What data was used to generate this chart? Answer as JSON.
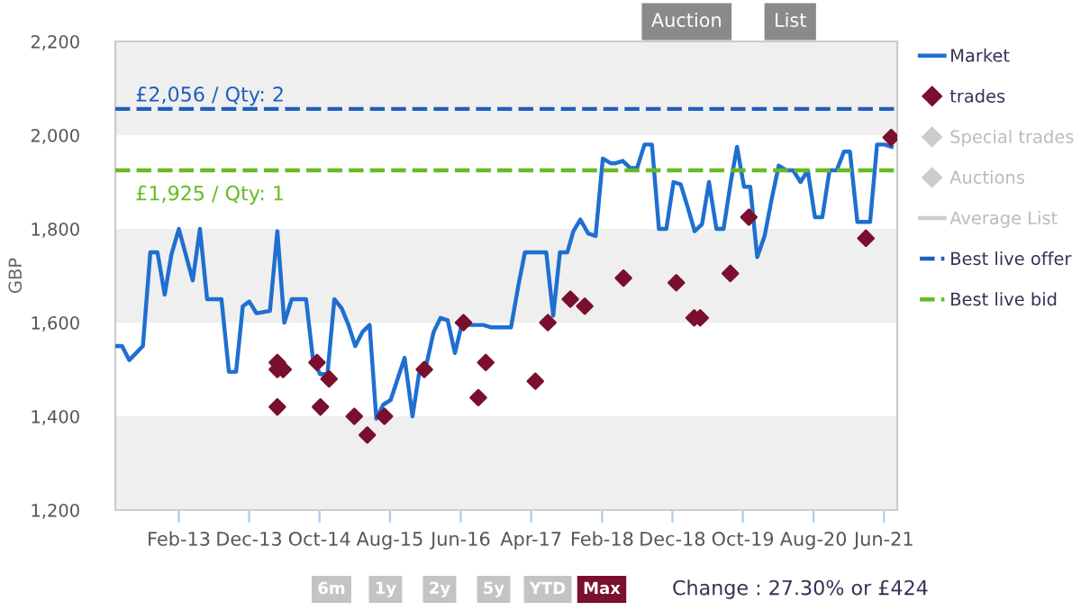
{
  "chart_data": {
    "type": "line",
    "ylabel": "GBP",
    "xlim": [
      "2012-05-03",
      "2021-07-28"
    ],
    "xticks": [
      {
        "value": "2013-02-01",
        "label": "Feb-13"
      },
      {
        "value": "2013-12-01",
        "label": "Dec-13"
      },
      {
        "value": "2014-10-01",
        "label": "Oct-14"
      },
      {
        "value": "2015-08-01",
        "label": "Aug-15"
      },
      {
        "value": "2016-06-01",
        "label": "Jun-16"
      },
      {
        "value": "2017-04-01",
        "label": "Apr-17"
      },
      {
        "value": "2018-02-01",
        "label": "Feb-18"
      },
      {
        "value": "2018-12-01",
        "label": "Dec-18"
      },
      {
        "value": "2019-10-01",
        "label": "Oct-19"
      },
      {
        "value": "2020-08-01",
        "label": "Aug-20"
      },
      {
        "value": "2021-06-01",
        "label": "Jun-21"
      }
    ],
    "ylim": [
      1200,
      2200
    ],
    "yticks": [
      {
        "value": 1200,
        "label": "1,200"
      },
      {
        "value": 1400,
        "label": "1,400"
      },
      {
        "value": 1600,
        "label": "1,600"
      },
      {
        "value": 1800,
        "label": "1,800"
      },
      {
        "value": 2000,
        "label": "2,000"
      },
      {
        "value": 2200,
        "label": "2,200"
      }
    ],
    "grid": false,
    "legend": "right",
    "bands": [
      {
        "axis": "y",
        "from": 1200,
        "to": 1400,
        "color": "#efefef"
      },
      {
        "axis": "y",
        "from": 1600,
        "to": 1800,
        "color": "#efefef"
      },
      {
        "axis": "y",
        "from": 2000,
        "to": 2200,
        "color": "#efefef"
      }
    ],
    "series": [
      {
        "name": "Market",
        "color": "#1f6fd1",
        "marker": "none",
        "line_style": "solid",
        "x": [
          "2012-05-03",
          "2012-06-01",
          "2012-07-02",
          "2012-08-30",
          "2012-10-01",
          "2012-11-01",
          "2012-12-02",
          "2012-12-31",
          "2013-02-01",
          "2013-04-02",
          "2013-05-03",
          "2013-06-03",
          "2013-08-04",
          "2013-09-05",
          "2013-10-06",
          "2013-11-04",
          "2013-12-02",
          "2014-01-02",
          "2014-03-01",
          "2014-04-02",
          "2014-05-02",
          "2014-06-03",
          "2014-08-04",
          "2014-09-02",
          "2014-10-03",
          "2014-11-04",
          "2014-12-04",
          "2015-01-05",
          "2015-02-03",
          "2015-03-04",
          "2015-04-04",
          "2015-05-05",
          "2015-06-03",
          "2015-07-03",
          "2015-08-04",
          "2015-10-03",
          "2015-11-06",
          "2015-12-04",
          "2016-01-05",
          "2016-02-05",
          "2016-03-06",
          "2016-04-06",
          "2016-05-07",
          "2016-06-05",
          "2016-07-06",
          "2016-09-07",
          "2016-10-08",
          "2017-01-04",
          "2017-02-05",
          "2017-03-05",
          "2017-06-05",
          "2017-07-05",
          "2017-08-03",
          "2017-09-04",
          "2017-09-30",
          "2017-10-30",
          "2017-12-03",
          "2018-01-04",
          "2018-02-04",
          "2018-03-10",
          "2018-03-31",
          "2018-05-01",
          "2018-06-02",
          "2018-07-02",
          "2018-08-03",
          "2018-09-04",
          "2018-10-04",
          "2018-11-05",
          "2018-12-06",
          "2019-01-06",
          "2019-02-06",
          "2019-03-07",
          "2019-04-08",
          "2019-05-08",
          "2019-06-09",
          "2019-07-10",
          "2019-08-10",
          "2019-09-06",
          "2019-10-06",
          "2019-11-02",
          "2019-12-02",
          "2020-01-03",
          "2020-02-03",
          "2020-03-04",
          "2020-04-05",
          "2020-05-05",
          "2020-06-06",
          "2020-07-07",
          "2020-08-07",
          "2020-09-08",
          "2020-10-09",
          "2020-11-09",
          "2020-12-10",
          "2021-01-05",
          "2021-02-06",
          "2021-04-02",
          "2021-05-02",
          "2021-06-03",
          "2021-07-04"
        ],
        "values": [
          1550,
          1550,
          1520,
          1550,
          1750,
          1750,
          1660,
          1745,
          1800,
          1690,
          1800,
          1650,
          1650,
          1495,
          1495,
          1635,
          1645,
          1620,
          1625,
          1795,
          1600,
          1650,
          1650,
          1525,
          1490,
          1490,
          1650,
          1630,
          1595,
          1550,
          1580,
          1595,
          1395,
          1425,
          1435,
          1525,
          1400,
          1490,
          1510,
          1580,
          1610,
          1605,
          1535,
          1595,
          1595,
          1595,
          1590,
          1590,
          1680,
          1750,
          1750,
          1615,
          1750,
          1750,
          1795,
          1820,
          1790,
          1785,
          1950,
          1940,
          1940,
          1945,
          1930,
          1930,
          1980,
          1980,
          1800,
          1800,
          1900,
          1895,
          1845,
          1795,
          1810,
          1900,
          1800,
          1800,
          1900,
          1975,
          1890,
          1890,
          1740,
          1785,
          1865,
          1935,
          1925,
          1925,
          1900,
          1925,
          1825,
          1825,
          1925,
          1925,
          1965,
          1965,
          1815,
          1815,
          1980,
          1980,
          1975
        ]
      },
      {
        "name": "trades",
        "type": "scatter",
        "color": "#7a0f2e",
        "marker": "diamond",
        "x": [
          "2014-04-02",
          "2014-04-02",
          "2014-04-02",
          "2014-04-27",
          "2014-09-20",
          "2014-10-05",
          "2014-11-11",
          "2015-02-28",
          "2015-04-25",
          "2015-07-08",
          "2015-12-27",
          "2016-06-13",
          "2016-08-16",
          "2016-09-17",
          "2017-04-19",
          "2017-06-12",
          "2017-09-17",
          "2017-11-18",
          "2018-05-04",
          "2018-12-18",
          "2019-03-05",
          "2019-03-31",
          "2019-08-08",
          "2019-10-27",
          "2021-03-15",
          "2021-07-02"
        ],
        "values": [
          1515,
          1500,
          1420,
          1500,
          1515,
          1420,
          1480,
          1400,
          1360,
          1400,
          1500,
          1600,
          1440,
          1515,
          1475,
          1600,
          1650,
          1635,
          1695,
          1685,
          1610,
          1610,
          1705,
          1825,
          1780,
          1995
        ]
      },
      {
        "name": "Special trades",
        "type": "scatter",
        "color": "#cccccc",
        "marker": "diamond"
      },
      {
        "name": "Auctions",
        "type": "scatter",
        "color": "#cccccc",
        "marker": "diamond"
      },
      {
        "name": "Average List",
        "type": "line",
        "color": "#cccccc",
        "marker": "none",
        "line_style": "solid"
      },
      {
        "name": "Best live offer",
        "type": "line",
        "color": "#1f5fbf",
        "marker": "none",
        "line_style": "dashed",
        "x": [
          "2012-05-03",
          "2021-07-28"
        ],
        "values": [
          2056,
          2056
        ]
      },
      {
        "name": "Best live bid",
        "type": "line",
        "color": "#66bb22",
        "marker": "none",
        "line_style": "dashed",
        "x": [
          "2012-05-03",
          "2021-07-28"
        ],
        "values": [
          1925,
          1925
        ]
      }
    ],
    "annotations": [
      {
        "text": "£2,056 / Qty: 2",
        "x": "2012-05-03",
        "y": 2056
      },
      {
        "text": "£1,925 / Qty: 1",
        "x": "2012-05-03",
        "y": 1925
      },
      "Auction",
      "List",
      "6m",
      "1y",
      "2y",
      "5y",
      "YTD",
      "Max",
      "Change : 27.30% or £424"
    ]
  }
}
